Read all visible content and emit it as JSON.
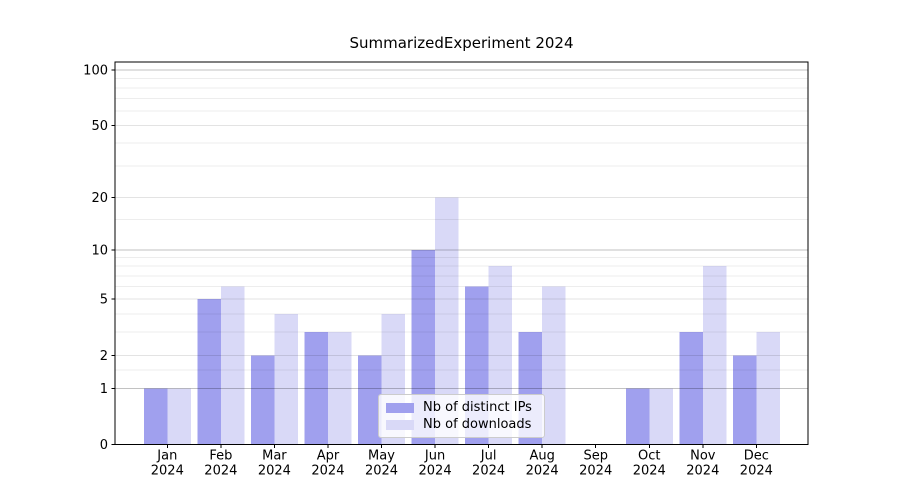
{
  "chart_data": {
    "type": "bar",
    "title": "SummarizedExperiment 2024",
    "categories": [
      "Jan",
      "Feb",
      "Mar",
      "Apr",
      "May",
      "Jun",
      "Jul",
      "Aug",
      "Sep",
      "Oct",
      "Nov",
      "Dec"
    ],
    "year_label": "2024",
    "series": [
      {
        "name": "Nb of distinct IPs",
        "color": "#a0a0ee",
        "values": [
          1,
          5,
          2,
          3,
          2,
          10,
          6,
          3,
          0,
          1,
          3,
          2
        ]
      },
      {
        "name": "Nb of downloads",
        "color": "#d9d9f7",
        "values": [
          1,
          6,
          4,
          3,
          4,
          20,
          8,
          6,
          0,
          1,
          8,
          3
        ]
      }
    ],
    "yscale": "log1p",
    "ylim": [
      0,
      110
    ],
    "yticks": [
      0,
      1,
      2,
      5,
      10,
      20,
      50,
      100
    ],
    "decade_gridlines": [
      1,
      10,
      100
    ],
    "labeled_gridlines": [
      2,
      5,
      20,
      50
    ],
    "minor_gridlines": [
      1.5,
      3,
      4,
      6,
      7,
      8,
      9,
      15,
      30,
      40,
      60,
      70,
      80,
      90
    ],
    "grid": "horizontal",
    "legend_position": "lower center",
    "colors": {
      "axis": "#000000",
      "tick_text": "#000000",
      "grid_decade": "rgba(0,0,0,0.24)",
      "grid_labeled": "rgba(0,0,0,0.11)",
      "grid_minor": "rgba(0,0,0,0.07)",
      "legend_border": "#cccccc"
    }
  }
}
